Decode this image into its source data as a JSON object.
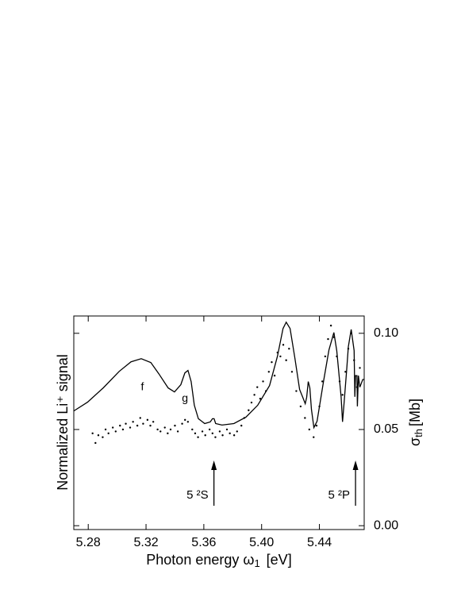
{
  "chart_data": {
    "type": "line",
    "xlabel": {
      "main": "Photon energy ω",
      "sub": "1",
      "unit": "[eV]"
    },
    "ylabel": "Normalized Li⁺ signal",
    "y2label": {
      "main": "σ",
      "sub": "th",
      "unit": "[Mb]"
    },
    "xlim": [
      5.27,
      5.471
    ],
    "xticks": [
      5.28,
      5.32,
      5.36,
      {
        "value": 5.4,
        "label": "5.40"
      },
      5.44
    ],
    "y2lim": [
      -0.002,
      0.109
    ],
    "y2ticks": [
      {
        "value": 0,
        "label": "0.00"
      },
      0.05,
      {
        "value": 0.1,
        "label": "0.10"
      }
    ],
    "series": [
      {
        "mode": "line",
        "axis": "y2",
        "color": "#000000",
        "x": [
          5.2701,
          5.2795,
          5.2904,
          5.3014,
          5.3096,
          5.3167,
          5.3233,
          5.3288,
          5.3353,
          5.3397,
          5.3441,
          5.3469,
          5.349,
          5.3512,
          5.3534,
          5.3562,
          5.3606,
          5.3644,
          5.366,
          5.3671,
          5.3682,
          5.3726,
          5.3808,
          5.3891,
          5.3973,
          5.4055,
          5.411,
          5.4148,
          5.417,
          5.4197,
          5.423,
          5.4263,
          5.4285,
          5.4302,
          5.4312,
          5.4323,
          5.4334,
          5.4345,
          5.4362,
          5.4384,
          5.4428,
          5.4466,
          5.45,
          5.452,
          5.455,
          5.456,
          5.457,
          5.459,
          5.46,
          5.462,
          5.464,
          5.4645,
          5.465,
          5.466,
          5.4663,
          5.467,
          5.468,
          5.47,
          5.471
        ],
        "values": [
          0.0597,
          0.0642,
          0.0716,
          0.0802,
          0.0852,
          0.0868,
          0.0848,
          0.079,
          0.0716,
          0.0695,
          0.0733,
          0.0794,
          0.0807,
          0.0749,
          0.0626,
          0.0556,
          0.0531,
          0.0539,
          0.0556,
          0.0556,
          0.0531,
          0.0523,
          0.0531,
          0.0564,
          0.0626,
          0.0728,
          0.0881,
          0.1025,
          0.1058,
          0.1025,
          0.0872,
          0.0708,
          0.0667,
          0.0634,
          0.0667,
          0.0749,
          0.0716,
          0.0605,
          0.051,
          0.0543,
          0.0749,
          0.0914,
          0.1004,
          0.091,
          0.067,
          0.054,
          0.063,
          0.082,
          0.093,
          0.102,
          0.091,
          0.067,
          0.078,
          0.078,
          0.062,
          0.078,
          0.072,
          0.076,
          0.076
        ]
      },
      {
        "mode": "dots",
        "axis": "y2",
        "color": "#000000",
        "x": [
          5.283,
          5.285,
          5.287,
          5.29,
          5.292,
          5.294,
          5.297,
          5.299,
          5.302,
          5.304,
          5.306,
          5.309,
          5.311,
          5.314,
          5.316,
          5.318,
          5.321,
          5.323,
          5.325,
          5.328,
          5.33,
          5.333,
          5.335,
          5.337,
          5.34,
          5.342,
          5.345,
          5.347,
          5.349,
          5.352,
          5.354,
          5.356,
          5.359,
          5.361,
          5.364,
          5.366,
          5.368,
          5.371,
          5.373,
          5.376,
          5.378,
          5.381,
          5.383,
          5.386,
          5.388,
          5.391,
          5.393,
          5.395,
          5.397,
          5.399,
          5.401,
          5.403,
          5.405,
          5.407,
          5.409,
          5.411,
          5.413,
          5.415,
          5.417,
          5.419,
          5.421,
          5.424,
          5.427,
          5.43,
          5.433,
          5.436,
          5.438,
          5.44,
          5.442,
          5.444,
          5.446,
          5.448,
          5.45,
          5.452,
          5.454,
          5.456,
          5.458,
          5.46,
          5.462,
          5.464,
          5.466,
          5.468
        ],
        "values": [
          0.048,
          0.043,
          0.047,
          0.046,
          0.05,
          0.048,
          0.051,
          0.049,
          0.052,
          0.05,
          0.053,
          0.051,
          0.054,
          0.052,
          0.056,
          0.053,
          0.055,
          0.052,
          0.054,
          0.05,
          0.049,
          0.051,
          0.048,
          0.05,
          0.052,
          0.049,
          0.053,
          0.055,
          0.054,
          0.05,
          0.048,
          0.046,
          0.049,
          0.047,
          0.05,
          0.048,
          0.046,
          0.049,
          0.047,
          0.05,
          0.048,
          0.047,
          0.049,
          0.052,
          0.056,
          0.06,
          0.064,
          0.068,
          0.072,
          0.066,
          0.075,
          0.07,
          0.08,
          0.085,
          0.078,
          0.09,
          0.088,
          0.094,
          0.086,
          0.092,
          0.08,
          0.07,
          0.062,
          0.056,
          0.05,
          0.046,
          0.052,
          0.062,
          0.075,
          0.088,
          0.097,
          0.104,
          0.098,
          0.088,
          0.075,
          0.068,
          0.08,
          0.092,
          0.1,
          0.086,
          0.072,
          0.082
        ]
      }
    ],
    "peak_labels": [
      {
        "text": "f",
        "x": 5.3175,
        "y": 0.072
      },
      {
        "text": "g",
        "x": 5.347,
        "y": 0.066
      }
    ],
    "thresholds": [
      {
        "text": "5 ²S",
        "x": 5.367
      },
      {
        "text": "5 ²P",
        "x": 5.465
      }
    ]
  }
}
